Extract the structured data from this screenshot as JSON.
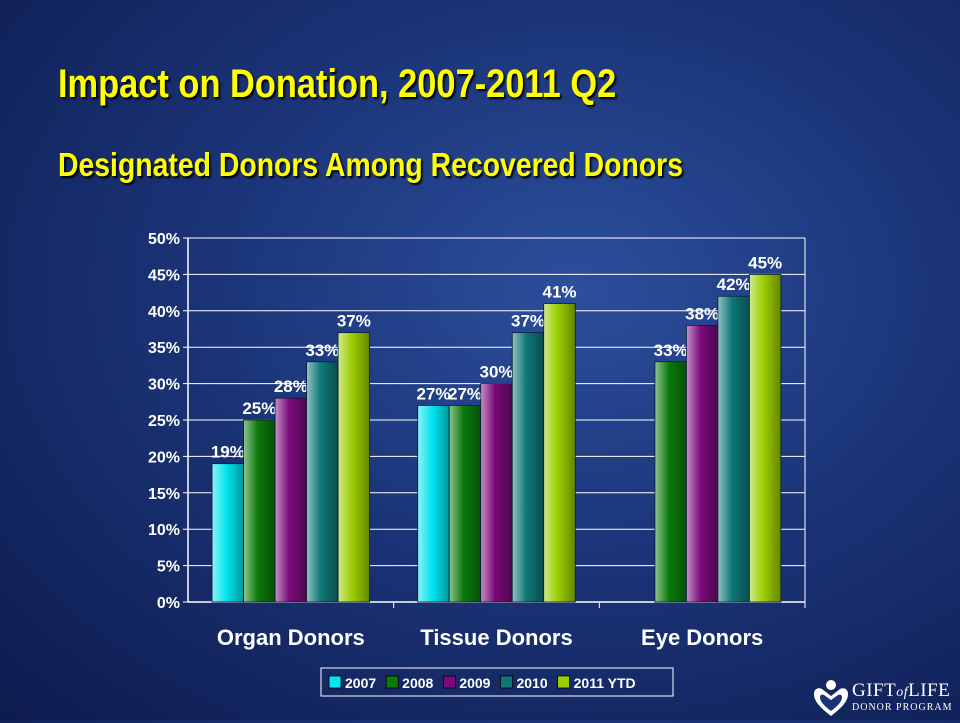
{
  "chart_data": {
    "type": "bar",
    "title": "Impact on Donation, 2007-2011 Q2",
    "subtitle": "Designated Donors Among Recovered Donors",
    "categories": [
      "Organ Donors",
      "Tissue Donors",
      "Eye Donors"
    ],
    "series": [
      {
        "name": "2007",
        "values": [
          19,
          27,
          null
        ],
        "labels": [
          "19%",
          "27%",
          ""
        ],
        "color": "#00e5ee"
      },
      {
        "name": "2008",
        "values": [
          25,
          27,
          33
        ],
        "labels": [
          "25%",
          "27%",
          "33%"
        ],
        "color": "#0a7a0a"
      },
      {
        "name": "2009",
        "values": [
          28,
          30,
          38
        ],
        "labels": [
          "28%",
          "30%",
          "38%"
        ],
        "color": "#7a0a7a"
      },
      {
        "name": "2010",
        "values": [
          33,
          37,
          42
        ],
        "labels": [
          "33%",
          "37%",
          "42%"
        ],
        "color": "#0f7777"
      },
      {
        "name": "2011 YTD",
        "values": [
          37,
          41,
          45
        ],
        "labels": [
          "37%",
          "41%",
          "45%"
        ],
        "color": "#9acd00"
      }
    ],
    "ylim": [
      0,
      50
    ],
    "yticks": [
      "0%",
      "5%",
      "10%",
      "15%",
      "20%",
      "25%",
      "30%",
      "35%",
      "40%",
      "45%",
      "50%"
    ],
    "grid": true,
    "legend": "bottom"
  },
  "logo": {
    "name_left": "GIFT",
    "name_mid": "of",
    "name_right": "LIFE",
    "sub": "DONOR PROGRAM",
    "icon": "heart-people-icon"
  }
}
